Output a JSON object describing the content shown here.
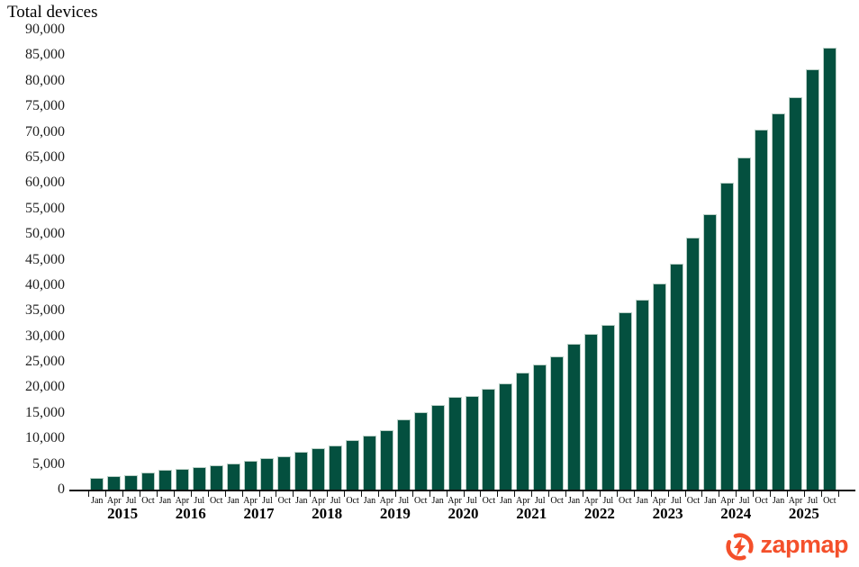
{
  "page": {
    "title": "Total devices"
  },
  "logo": {
    "text": "zapmap",
    "color": "#f4502b",
    "icon": "zapmap-lightning-circle-icon"
  },
  "chart_data": {
    "type": "bar",
    "title": "Total devices",
    "categories": [
      "Jan 2015",
      "Apr 2015",
      "Jul 2015",
      "Oct 2015",
      "Jan 2016",
      "Apr 2016",
      "Jul 2016",
      "Oct 2016",
      "Jan 2017",
      "Apr 2017",
      "Jul 2017",
      "Oct 2017",
      "Jan 2018",
      "Apr 2018",
      "Jul 2018",
      "Oct 2018",
      "Jan 2019",
      "Apr 2019",
      "Jul 2019",
      "Oct 2019",
      "Jan 2020",
      "Apr 2020",
      "Jul 2020",
      "Oct 2020",
      "Jan 2021",
      "Apr 2021",
      "Jul 2021",
      "Oct 2021",
      "Jan 2022",
      "Apr 2022",
      "Jul 2022",
      "Oct 2022",
      "Jan 2023",
      "Apr 2023",
      "Jul 2023",
      "Oct 2023",
      "Jan 2024",
      "Apr 2024",
      "Jul 2024",
      "Oct 2024",
      "Jan 2025",
      "Apr 2025",
      "Jul 2025",
      "Oct 2025"
    ],
    "values": [
      2300,
      2600,
      2900,
      3300,
      3800,
      4100,
      4400,
      4700,
      5100,
      5600,
      6100,
      6600,
      7400,
      8100,
      8700,
      9700,
      10500,
      11700,
      13700,
      15100,
      16600,
      18200,
      18400,
      19700,
      20800,
      22900,
      24500,
      26000,
      28600,
      30400,
      32200,
      34700,
      37200,
      40300,
      44200,
      49400,
      53900,
      60100,
      65000,
      70400,
      73600,
      76800,
      82200,
      86400
    ],
    "x_month_labels": [
      "Jan",
      "Apr",
      "Jul",
      "Oct"
    ],
    "x_year_labels": [
      "2015",
      "2016",
      "2017",
      "2018",
      "2019",
      "2020",
      "2021",
      "2022",
      "2023",
      "2024",
      "2025"
    ],
    "xlabel": "",
    "ylabel": "Total devices",
    "ylim": [
      0,
      90000
    ],
    "ytick_step": 5000,
    "ytick_labels": [
      "0",
      "5,000",
      "10,000",
      "15,000",
      "20,000",
      "25,000",
      "30,000",
      "35,000",
      "40,000",
      "45,000",
      "50,000",
      "55,000",
      "60,000",
      "65,000",
      "70,000",
      "75,000",
      "80,000",
      "85,000",
      "90,000"
    ],
    "bar_color": "#04503f",
    "bar_border_color": "#b9cfc6",
    "axis_color": "#111111",
    "grid": false,
    "legend": "none"
  }
}
